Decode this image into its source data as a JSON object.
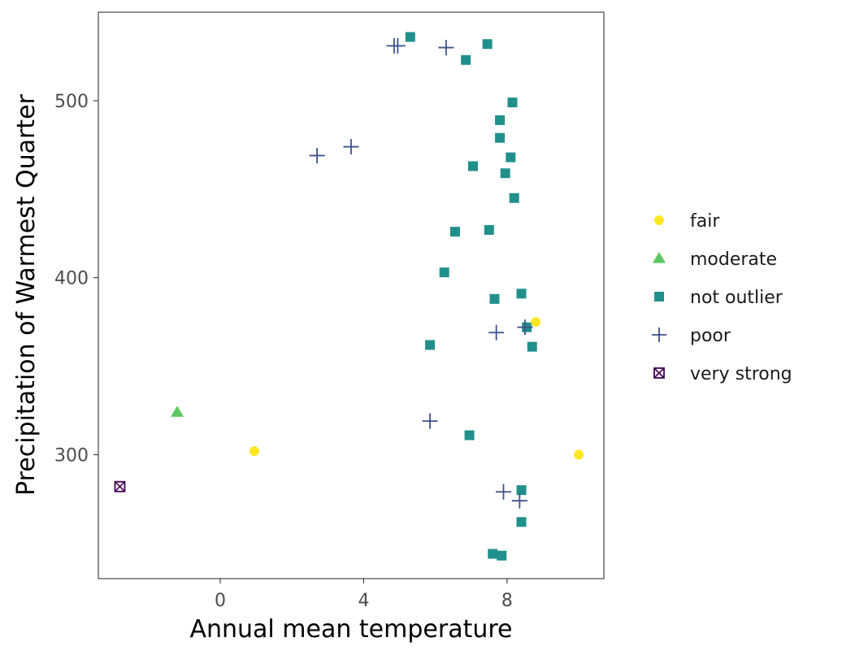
{
  "chart_data": {
    "type": "scatter",
    "xlabel": "Annual mean temperature",
    "ylabel": "Precipitation of Warmest Quarter",
    "xlim": [
      -3.4,
      10.7
    ],
    "ylim": [
      230,
      550
    ],
    "x_ticks": [
      0,
      4,
      8
    ],
    "y_ticks": [
      300,
      400,
      500
    ],
    "x_tick_labels": [
      "0",
      "4",
      "8"
    ],
    "y_tick_labels": [
      "300",
      "400",
      "500"
    ],
    "grid": false,
    "legend_position": "right",
    "series": [
      {
        "name": "fair",
        "shape": "circle",
        "color": "#FDE725",
        "points": [
          [
            0.95,
            302
          ],
          [
            8.8,
            375
          ],
          [
            10.0,
            300
          ]
        ]
      },
      {
        "name": "moderate",
        "shape": "triangle",
        "color": "#5DC863",
        "points": [
          [
            -1.2,
            324
          ]
        ]
      },
      {
        "name": "not outlier",
        "shape": "square",
        "color": "#21908C",
        "points": [
          [
            5.3,
            536
          ],
          [
            7.45,
            532
          ],
          [
            6.85,
            523
          ],
          [
            8.15,
            499
          ],
          [
            7.8,
            489
          ],
          [
            7.8,
            479
          ],
          [
            8.1,
            468
          ],
          [
            7.05,
            463
          ],
          [
            7.95,
            459
          ],
          [
            8.2,
            445
          ],
          [
            6.55,
            426
          ],
          [
            7.5,
            427
          ],
          [
            6.25,
            403
          ],
          [
            8.4,
            391
          ],
          [
            7.65,
            388
          ],
          [
            8.55,
            372
          ],
          [
            5.85,
            362
          ],
          [
            8.7,
            361
          ],
          [
            6.95,
            311
          ],
          [
            8.4,
            280
          ],
          [
            8.4,
            262
          ],
          [
            7.6,
            244
          ],
          [
            7.85,
            243
          ]
        ]
      },
      {
        "name": "poor",
        "shape": "plus",
        "color": "#3B528B",
        "points": [
          [
            4.85,
            531
          ],
          [
            4.95,
            531
          ],
          [
            6.3,
            530
          ],
          [
            3.65,
            474
          ],
          [
            2.7,
            469
          ],
          [
            8.5,
            372
          ],
          [
            7.7,
            369
          ],
          [
            5.85,
            319
          ],
          [
            7.9,
            279
          ],
          [
            8.35,
            274
          ]
        ]
      },
      {
        "name": "very strong",
        "shape": "square-cross",
        "color": "#440154",
        "points": [
          [
            -2.8,
            282
          ]
        ]
      }
    ]
  }
}
